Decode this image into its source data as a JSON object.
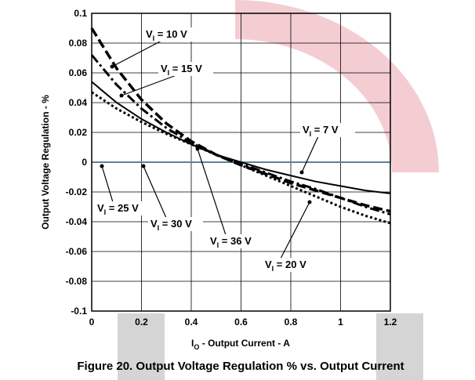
{
  "chart_data": {
    "type": "line",
    "title": "Figure 20. Output Voltage Regulation % vs. Output Current",
    "y_label": "Output Voltage Regulation - %",
    "x_label": {
      "symbol": "I",
      "subscript": "O",
      "text": " - Output Current - A"
    },
    "x": [
      0,
      0.1,
      0.2,
      0.3,
      0.4,
      0.5,
      0.6,
      0.7,
      0.8,
      0.9,
      1.0,
      1.1,
      1.2
    ],
    "xlim": [
      0,
      1.2
    ],
    "xticks": [
      0,
      0.2,
      0.4,
      0.6,
      0.8,
      1,
      1.2
    ],
    "ylim": [
      -0.1,
      0.1
    ],
    "yticks": [
      -0.1,
      -0.08,
      -0.06,
      -0.04,
      -0.02,
      0,
      0.02,
      0.04,
      0.06,
      0.08,
      0.1
    ],
    "grid": true,
    "series": [
      {
        "name": "VI = 25 V",
        "color": "#c0143c",
        "width": 2,
        "dash": "none",
        "values": [
          0,
          0,
          0,
          0,
          0,
          0,
          0,
          0,
          0,
          0,
          0,
          0,
          0
        ]
      },
      {
        "name": "VI = 30 V",
        "color": "#3fa7b0",
        "width": 1.5,
        "dash": "none",
        "values": [
          0,
          0,
          0,
          0,
          0,
          0,
          0,
          0,
          0,
          0,
          0,
          0,
          0
        ]
      },
      {
        "name": "VI = 7 V",
        "color": "#000000",
        "width": 2,
        "dash": "none",
        "values": [
          0.054,
          0.04,
          0.029,
          0.02,
          0.012,
          0.005,
          0,
          -0.005,
          -0.009,
          -0.013,
          -0.016,
          -0.019,
          -0.021
        ]
      },
      {
        "name": "VI = 10 V",
        "color": "#000000",
        "width": 3.5,
        "dash": "12,5",
        "values": [
          0.09,
          0.063,
          0.042,
          0.026,
          0.014,
          0.005,
          -0.002,
          -0.008,
          -0.014,
          -0.019,
          -0.024,
          -0.029,
          -0.033
        ]
      },
      {
        "name": "VI = 15 V",
        "color": "#000000",
        "width": 3,
        "dash": "12,4,3,4",
        "values": [
          0.072,
          0.052,
          0.036,
          0.023,
          0.013,
          0.005,
          -0.001,
          -0.007,
          -0.013,
          -0.018,
          -0.024,
          -0.03,
          -0.035
        ]
      },
      {
        "name": "VI = 20 V",
        "color": "#000000",
        "width": 3,
        "dash": "3,3",
        "values": [
          0.047,
          0.036,
          0.027,
          0.019,
          0.012,
          0.005,
          -0.002,
          -0.009,
          -0.016,
          -0.023,
          -0.03,
          -0.036,
          -0.041
        ]
      }
    ],
    "annotations": [
      {
        "symbol": "V",
        "subscript": "I",
        "text": " = 10 V"
      },
      {
        "symbol": "V",
        "subscript": "I",
        "text": " = 15 V"
      },
      {
        "symbol": "V",
        "subscript": "I",
        "text": " = 7 V"
      },
      {
        "symbol": "V",
        "subscript": "I",
        "text": " = 25 V"
      },
      {
        "symbol": "V",
        "subscript": "I",
        "text": " = 30 V"
      },
      {
        "symbol": "V",
        "subscript": "I",
        "text": " = 36 V"
      },
      {
        "symbol": "V",
        "subscript": "I",
        "text": " = 20 V"
      }
    ]
  }
}
